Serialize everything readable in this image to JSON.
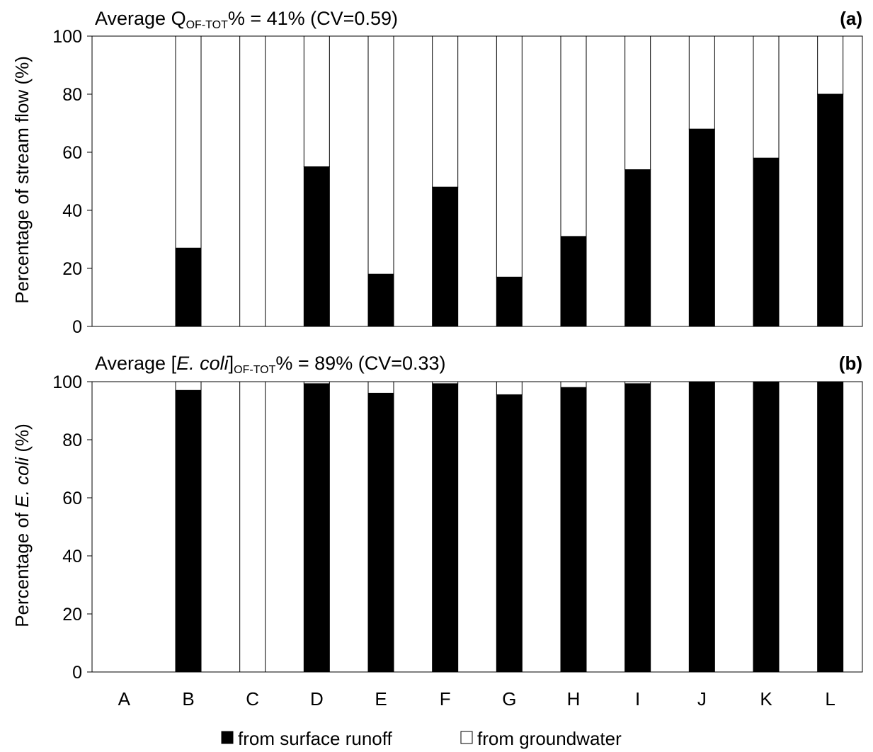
{
  "chart_data": [
    {
      "type": "bar",
      "stacked": true,
      "panel_label": "(a)",
      "title_parts": {
        "prefix": "Average Q",
        "subscript": "OF-TOT",
        "suffix": "%  = 41% (CV=0.59)"
      },
      "ylabel": "Percentage of stream flow (%)",
      "ylim": [
        0,
        100
      ],
      "yticks": [
        "0",
        "20",
        "40",
        "60",
        "80",
        "100"
      ],
      "categories": [
        "A",
        "B",
        "C",
        "D",
        "E",
        "F",
        "G",
        "H",
        "I",
        "J",
        "K",
        "L"
      ],
      "series": [
        {
          "name": "from surface runoff",
          "color": "#000000",
          "values": [
            0,
            27,
            0,
            55,
            18,
            48,
            17,
            31,
            54,
            68,
            58,
            80
          ]
        },
        {
          "name": "from groundwater",
          "color": "#ffffff",
          "values": [
            0,
            73,
            100,
            45,
            82,
            52,
            83,
            69,
            46,
            32,
            42,
            20
          ]
        }
      ]
    },
    {
      "type": "bar",
      "stacked": true,
      "panel_label": "(b)",
      "title_parts": {
        "prefix": "Average [",
        "italic": "E. coli",
        "mid": "]",
        "subscript": "OF-TOT",
        "suffix": "% = 89% (CV=0.33)"
      },
      "ylabel_parts": {
        "prefix": "Percentage of ",
        "italic": "E. coli",
        "suffix": " (%)"
      },
      "ylim": [
        0,
        100
      ],
      "yticks": [
        "0",
        "20",
        "40",
        "60",
        "80",
        "100"
      ],
      "categories": [
        "A",
        "B",
        "C",
        "D",
        "E",
        "F",
        "G",
        "H",
        "I",
        "J",
        "K",
        "L"
      ],
      "series": [
        {
          "name": "from surface runoff",
          "color": "#000000",
          "values": [
            0,
            97,
            0,
            99.3,
            96,
            99.3,
            95.5,
            98,
            99.3,
            100,
            100,
            100
          ]
        },
        {
          "name": "from groundwater",
          "color": "#ffffff",
          "values": [
            0,
            3,
            100,
            0.7,
            4,
            0.7,
            4.5,
            2,
            0.7,
            0,
            0,
            0
          ]
        }
      ]
    }
  ],
  "legend": {
    "items": [
      {
        "label": "from surface runoff",
        "color": "#000000"
      },
      {
        "label": "from groundwater",
        "color": "#ffffff"
      }
    ]
  }
}
